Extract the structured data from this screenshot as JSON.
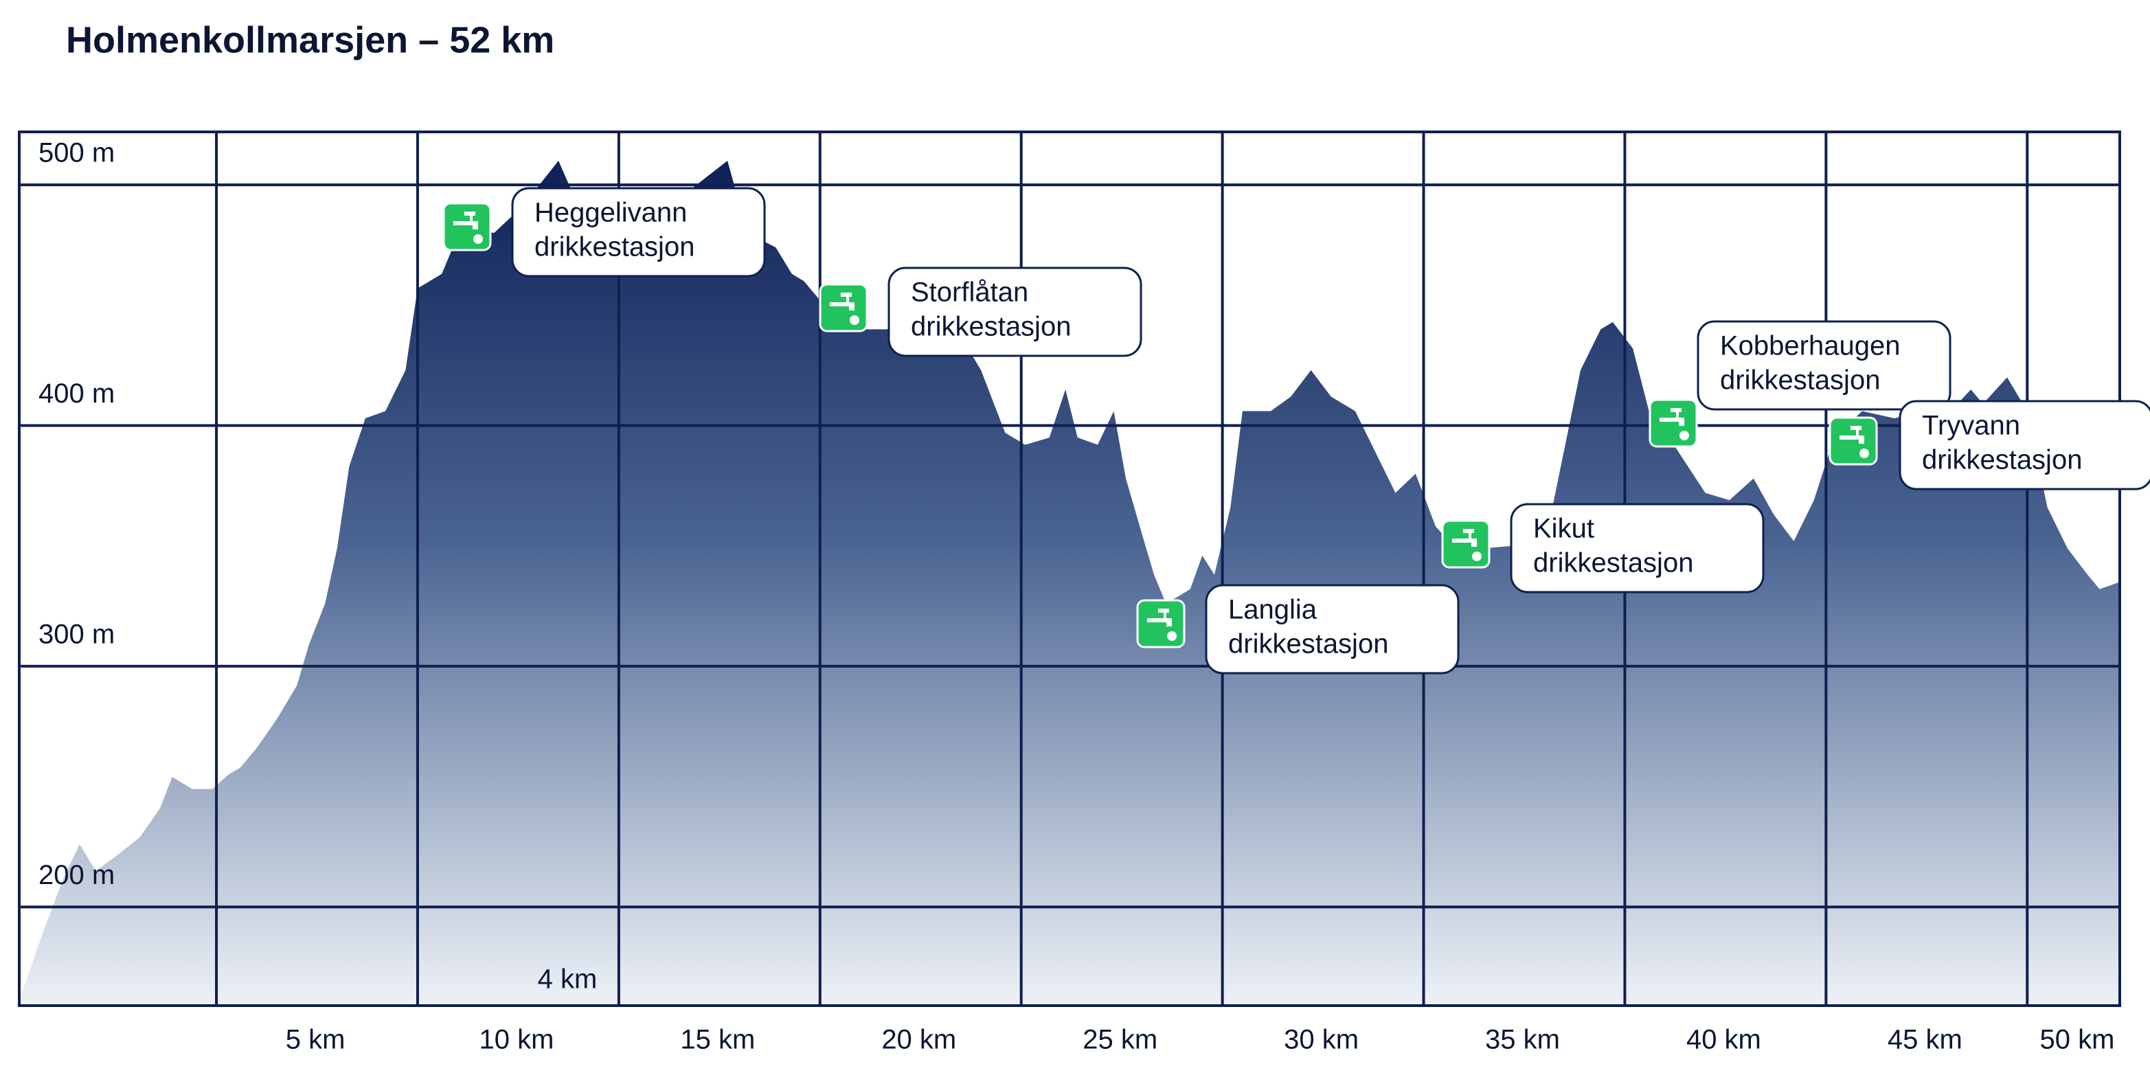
{
  "chart_data": {
    "type": "area",
    "title": "Holmenkollmarsjen – 52 km",
    "x": [
      0.1,
      0.7,
      1.2,
      1.6,
      2.0,
      2.5,
      3.1,
      3.6,
      3.9,
      4.4,
      4.9,
      5.3,
      5.6,
      6.0,
      6.5,
      7.0,
      7.3,
      7.7,
      8.0,
      8.3,
      8.7,
      9.2,
      9.7,
      10.0,
      10.6,
      11.1,
      11.9,
      12.6,
      13.5,
      14.0,
      15.0,
      15.7,
      16.7,
      17.7,
      18.2,
      18.9,
      19.3,
      19.6,
      19.9,
      20.3,
      20.8,
      21.8,
      22.8,
      23.5,
      24.0,
      24.6,
      25.1,
      25.7,
      26.1,
      26.4,
      26.9,
      27.3,
      27.6,
      28.0,
      28.3,
      28.6,
      29.2,
      29.5,
      29.8,
      30.2,
      30.5,
      31.2,
      31.7,
      32.2,
      32.7,
      33.3,
      33.8,
      34.3,
      34.8,
      35.3,
      35.8,
      36.5,
      37.2,
      38.2,
      38.9,
      39.4,
      39.7,
      40.2,
      40.6,
      41.1,
      42.0,
      42.6,
      43.2,
      43.7,
      44.2,
      44.7,
      45.2,
      45.9,
      46.7,
      47.4,
      48.1,
      48.6,
      48.9,
      49.5,
      50.0,
      50.5,
      51.0,
      51.5,
      51.8,
      52.3
    ],
    "values": [
      161,
      190,
      212,
      226,
      215,
      221,
      229,
      241,
      254,
      249,
      249,
      255,
      258,
      266,
      278,
      292,
      309,
      326,
      349,
      383,
      403,
      406,
      423,
      457,
      463,
      483,
      480,
      491,
      510,
      491,
      489,
      491,
      497,
      510,
      480,
      474,
      463,
      460,
      454,
      446,
      440,
      440,
      440,
      437,
      423,
      397,
      392,
      395,
      415,
      395,
      392,
      406,
      378,
      355,
      338,
      326,
      332,
      346,
      338,
      366,
      406,
      406,
      412,
      423,
      412,
      406,
      389,
      372,
      380,
      358,
      349,
      349,
      350,
      366,
      423,
      440,
      443,
      432,
      406,
      395,
      372,
      369,
      378,
      363,
      352,
      369,
      395,
      406,
      403,
      406,
      406,
      415,
      409,
      420,
      406,
      366,
      349,
      338,
      332,
      335
    ],
    "xlim": [
      0.1,
      52.3
    ],
    "ylim": [
      159,
      522
    ],
    "xticks": [
      {
        "value": 5,
        "label": "5 km"
      },
      {
        "value": 10,
        "label": "10 km"
      },
      {
        "value": 15,
        "label": "15 km"
      },
      {
        "value": 20,
        "label": "20 km"
      },
      {
        "value": 25,
        "label": "25 km"
      },
      {
        "value": 30,
        "label": "30 km"
      },
      {
        "value": 35,
        "label": "35 km"
      },
      {
        "value": 40,
        "label": "40 km"
      },
      {
        "value": 45,
        "label": "45 km"
      },
      {
        "value": 50,
        "label": "50 km"
      }
    ],
    "yticks": [
      {
        "value": 200,
        "label": "200 m"
      },
      {
        "value": 300,
        "label": "300 m"
      },
      {
        "value": 400,
        "label": "400 m"
      },
      {
        "value": 500,
        "label": "500 m"
      }
    ],
    "grid": true,
    "color": "#0f2156",
    "annotation": "4 km",
    "stations": [
      {
        "lines": [
          "Heggelivann",
          "drikkestasjon"
        ]
      },
      {
        "lines": [
          "Storflåtan",
          "drikkestasjon"
        ]
      },
      {
        "lines": [
          "Langlia",
          "drikkestasjon"
        ]
      },
      {
        "lines": [
          "Kikut",
          "drikkestasjon"
        ]
      },
      {
        "lines": [
          "Kobberhaugen",
          "drikkestasjon"
        ]
      },
      {
        "lines": [
          "Tryvann",
          "drikkestasjon"
        ]
      }
    ]
  }
}
